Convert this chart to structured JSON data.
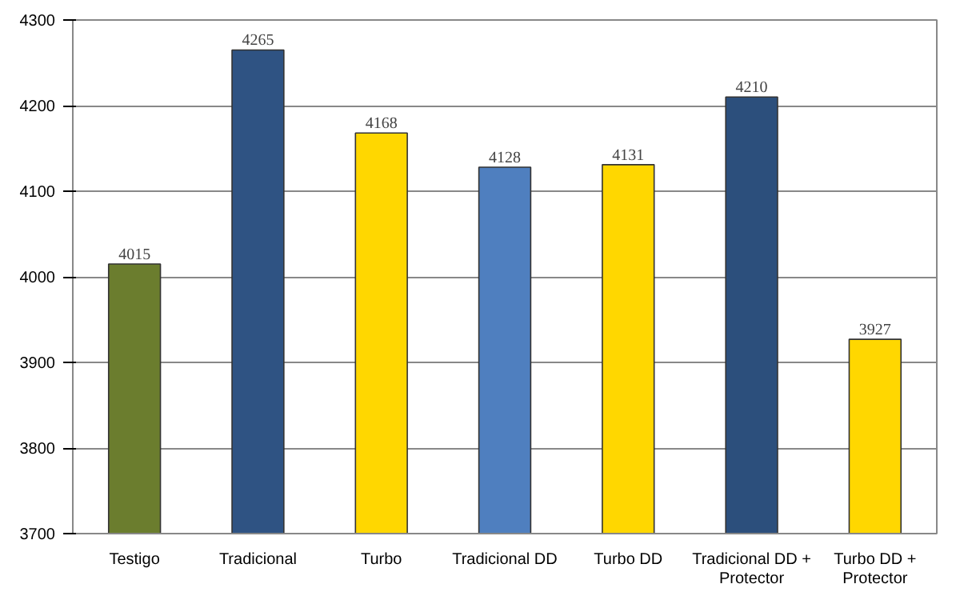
{
  "chart_data": {
    "type": "bar",
    "categories": [
      "Testigo",
      "Tradicional",
      "Turbo",
      "Tradicional DD",
      "Turbo DD",
      "Tradicional DD + Protector",
      "Turbo DD + Protector"
    ],
    "values": [
      4015,
      4265,
      4168,
      4128,
      4131,
      4210,
      3927
    ],
    "colors": [
      "#6b7d2e",
      "#2f5383",
      "#ffd700",
      "#4f7fbf",
      "#ffd700",
      "#2c4f7c",
      "#ffd700"
    ],
    "ylim": [
      3700,
      4300
    ],
    "yticks": [
      3700,
      3800,
      3900,
      4000,
      4100,
      4200,
      4300
    ],
    "grid": "y",
    "data_labels": true
  }
}
